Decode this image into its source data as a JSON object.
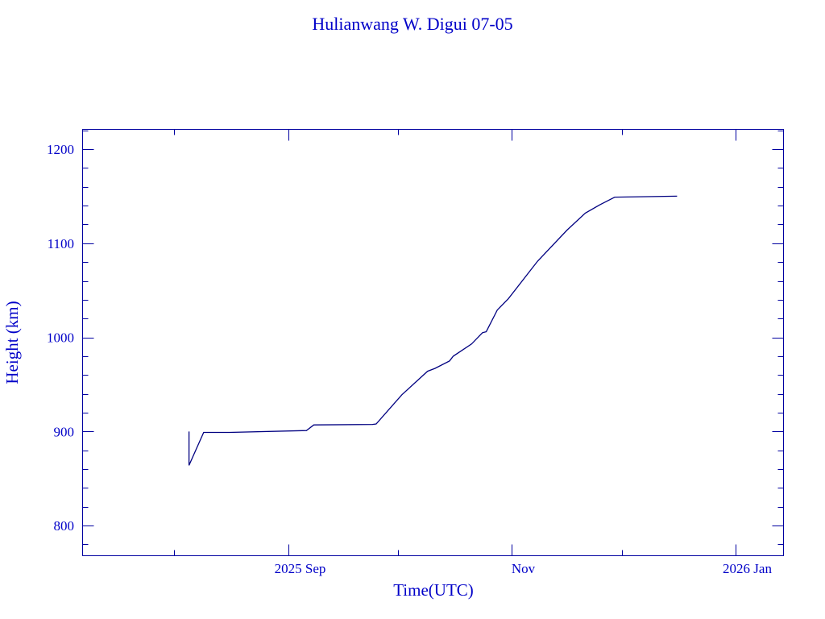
{
  "chart_data": {
    "type": "line",
    "title": "Hulianwang W. Digui 07-05",
    "xlabel": "Time(UTC)",
    "ylabel": "Height (km)",
    "xlim": [
      "2025-07-07",
      "2026-01-14"
    ],
    "ylim": [
      768,
      1221
    ],
    "x_ticks": [
      {
        "date": "2025-09-01",
        "label": "2025 Sep"
      },
      {
        "date": "2025-11-01",
        "label": "Nov"
      },
      {
        "date": "2026-01-01",
        "label": "2026 Jan"
      }
    ],
    "x_minor_ticks": [
      "2025-08-01",
      "2025-10-01",
      "2025-12-01"
    ],
    "y_ticks": [
      800,
      900,
      1000,
      1100,
      1200
    ],
    "y_tick_labels": [
      "800",
      "900",
      "1000",
      "1100",
      "1200"
    ],
    "y_minor_step": 20,
    "grid": false,
    "colors": {
      "text": "#0000c8",
      "axes": "#0000a0",
      "line": "#000080"
    },
    "series": [
      {
        "points": [
          [
            "2025-08-05",
            900
          ],
          [
            "2025-08-05",
            864
          ],
          [
            "2025-08-09",
            899
          ],
          [
            "2025-08-16",
            899
          ],
          [
            "2025-09-06",
            901
          ],
          [
            "2025-09-08",
            907
          ],
          [
            "2025-09-24",
            907.5
          ],
          [
            "2025-09-25",
            908
          ],
          [
            "2025-10-02",
            939
          ],
          [
            "2025-10-09",
            964
          ],
          [
            "2025-10-11",
            967
          ],
          [
            "2025-10-15",
            975
          ],
          [
            "2025-10-16",
            980
          ],
          [
            "2025-10-21",
            993
          ],
          [
            "2025-10-24",
            1005
          ],
          [
            "2025-10-25",
            1006
          ],
          [
            "2025-10-28",
            1029
          ],
          [
            "2025-10-31",
            1041
          ],
          [
            "2025-11-08",
            1081
          ],
          [
            "2025-11-16",
            1114
          ],
          [
            "2025-11-21",
            1132
          ],
          [
            "2025-11-25",
            1141
          ],
          [
            "2025-11-29",
            1149
          ],
          [
            "2025-12-16",
            1150
          ]
        ]
      }
    ]
  }
}
